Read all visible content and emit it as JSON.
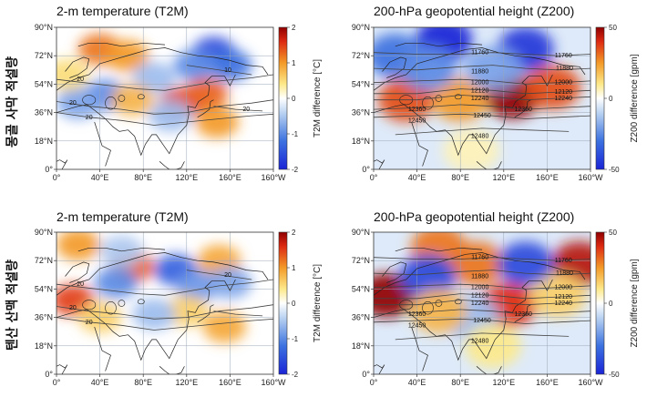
{
  "row_labels": [
    "몽골 사막 적설량",
    "텐산 산맥 적설량"
  ],
  "chart_data": [
    {
      "type": "heatmap",
      "title": "2-m temperature (T2M)",
      "colorbar": {
        "label": "T2M difference [°C]",
        "ticks": [
          "2",
          "1",
          "0",
          "-1",
          "-2"
        ],
        "range": [
          -2,
          2
        ]
      },
      "y_ticks": [
        "90°N",
        "72°N",
        "54°N",
        "36°N",
        "18°N",
        "0°"
      ],
      "x_ticks": [
        "0°",
        "40°E",
        "80°E",
        "120°E",
        "160°E",
        "160°W"
      ],
      "contour_labels": [
        "20",
        "20",
        "20",
        "10",
        "20"
      ],
      "features": [
        {
          "lon": 40,
          "lat": 76,
          "value": 1.2
        },
        {
          "lon": 65,
          "lat": 72,
          "value": 1.0
        },
        {
          "lon": 145,
          "lat": 74,
          "value": -1.6
        },
        {
          "lon": 160,
          "lat": 66,
          "value": -1.2
        },
        {
          "lon": 128,
          "lat": 66,
          "value": -1.0
        },
        {
          "lon": 115,
          "lat": 42,
          "value": 1.5
        },
        {
          "lon": 138,
          "lat": 48,
          "value": 1.3
        },
        {
          "lon": 148,
          "lat": 30,
          "value": 1.0
        },
        {
          "lon": 45,
          "lat": 47,
          "value": -1.0
        },
        {
          "lon": 20,
          "lat": 42,
          "value": -0.8
        },
        {
          "lon": 90,
          "lat": 58,
          "value": -0.6
        },
        {
          "lon": 70,
          "lat": 44,
          "value": 0.8
        },
        {
          "lon": 10,
          "lat": 60,
          "value": 0.5
        },
        {
          "lon": 105,
          "lat": 34,
          "value": -0.6
        }
      ]
    },
    {
      "type": "heatmap",
      "title": "200-hPa geopotential height (Z200)",
      "colorbar": {
        "label": "Z200 difference [gpm]",
        "ticks": [
          "50",
          "0",
          "-50"
        ],
        "range": [
          -50,
          50
        ]
      },
      "y_ticks": [
        "90°N",
        "72°N",
        "54°N",
        "36°N",
        "18°N",
        "0°"
      ],
      "x_ticks": [
        "0°",
        "40°E",
        "80°E",
        "120°E",
        "160°E",
        "160°W"
      ],
      "contour_labels": [
        "11760",
        "11760",
        "11880",
        "11880",
        "12000",
        "12000",
        "12120",
        "12120",
        "12240",
        "12240",
        "12360",
        "12360",
        "12450",
        "12450",
        "12480"
      ],
      "features": [
        {
          "lon": 65,
          "lat": 82,
          "value": -50
        },
        {
          "lon": 140,
          "lat": 76,
          "value": -45
        },
        {
          "lon": 20,
          "lat": 72,
          "value": -30
        },
        {
          "lon": 30,
          "lat": 44,
          "value": 35
        },
        {
          "lon": 128,
          "lat": 46,
          "value": 50
        },
        {
          "lon": 165,
          "lat": 52,
          "value": 35
        },
        {
          "lon": 80,
          "lat": 44,
          "value": 25
        },
        {
          "lon": 50,
          "lat": 64,
          "value": -25
        },
        {
          "lon": 110,
          "lat": 64,
          "value": -20
        },
        {
          "lon": 90,
          "lat": 12,
          "value": 6
        }
      ]
    },
    {
      "type": "heatmap",
      "title": "2-m temperature (T2M)",
      "colorbar": {
        "label": "T2M difference [°C]",
        "ticks": [
          "2",
          "1",
          "0",
          "-1",
          "-2"
        ],
        "range": [
          -2,
          2
        ]
      },
      "y_ticks": [
        "90°N",
        "72°N",
        "54°N",
        "36°N",
        "18°N",
        "0°"
      ],
      "x_ticks": [
        "0°",
        "40°E",
        "80°E",
        "120°E",
        "160°E",
        "160°W"
      ],
      "contour_labels": [
        "20",
        "20",
        "20",
        "20"
      ],
      "features": [
        {
          "lon": 20,
          "lat": 82,
          "value": 1.0
        },
        {
          "lon": 70,
          "lat": 68,
          "value": 1.3
        },
        {
          "lon": 15,
          "lat": 47,
          "value": 1.5
        },
        {
          "lon": 150,
          "lat": 72,
          "value": 0.9
        },
        {
          "lon": 110,
          "lat": 66,
          "value": -1.4
        },
        {
          "lon": 55,
          "lat": 58,
          "value": -1.0
        },
        {
          "lon": 130,
          "lat": 56,
          "value": -0.9
        },
        {
          "lon": 160,
          "lat": 58,
          "value": -0.8
        },
        {
          "lon": 120,
          "lat": 40,
          "value": 0.6
        },
        {
          "lon": 155,
          "lat": 30,
          "value": 0.9
        },
        {
          "lon": 90,
          "lat": 38,
          "value": -0.6
        },
        {
          "lon": 60,
          "lat": 78,
          "value": -0.5
        },
        {
          "lon": 40,
          "lat": 36,
          "value": 0.6
        }
      ]
    },
    {
      "type": "heatmap",
      "title": "200-hPa geopotential height (Z200)",
      "colorbar": {
        "label": "Z200 difference [gpm]",
        "ticks": [
          "50",
          "0",
          "-50"
        ],
        "range": [
          -50,
          50
        ]
      },
      "y_ticks": [
        "90°N",
        "72°N",
        "54°N",
        "36°N",
        "18°N",
        "0°"
      ],
      "x_ticks": [
        "0°",
        "40°E",
        "80°E",
        "120°E",
        "160°E",
        "160°W"
      ],
      "contour_labels": [
        "11760",
        "11760",
        "11880",
        "11880",
        "12000",
        "12000",
        "12120",
        "12120",
        "12240",
        "12240",
        "12360",
        "12360",
        "12450",
        "12450",
        "12480"
      ],
      "features": [
        {
          "lon": 12,
          "lat": 50,
          "value": 50
        },
        {
          "lon": 60,
          "lat": 80,
          "value": 30
        },
        {
          "lon": 95,
          "lat": 70,
          "value": 30
        },
        {
          "lon": 125,
          "lat": 44,
          "value": 40
        },
        {
          "lon": 190,
          "lat": 70,
          "value": 45
        },
        {
          "lon": 170,
          "lat": 50,
          "value": 15
        },
        {
          "lon": 50,
          "lat": 62,
          "value": -40
        },
        {
          "lon": 140,
          "lat": 70,
          "value": -40
        },
        {
          "lon": 90,
          "lat": 36,
          "value": -15
        },
        {
          "lon": 60,
          "lat": 40,
          "value": 20
        },
        {
          "lon": 110,
          "lat": 18,
          "value": 10
        }
      ]
    }
  ]
}
